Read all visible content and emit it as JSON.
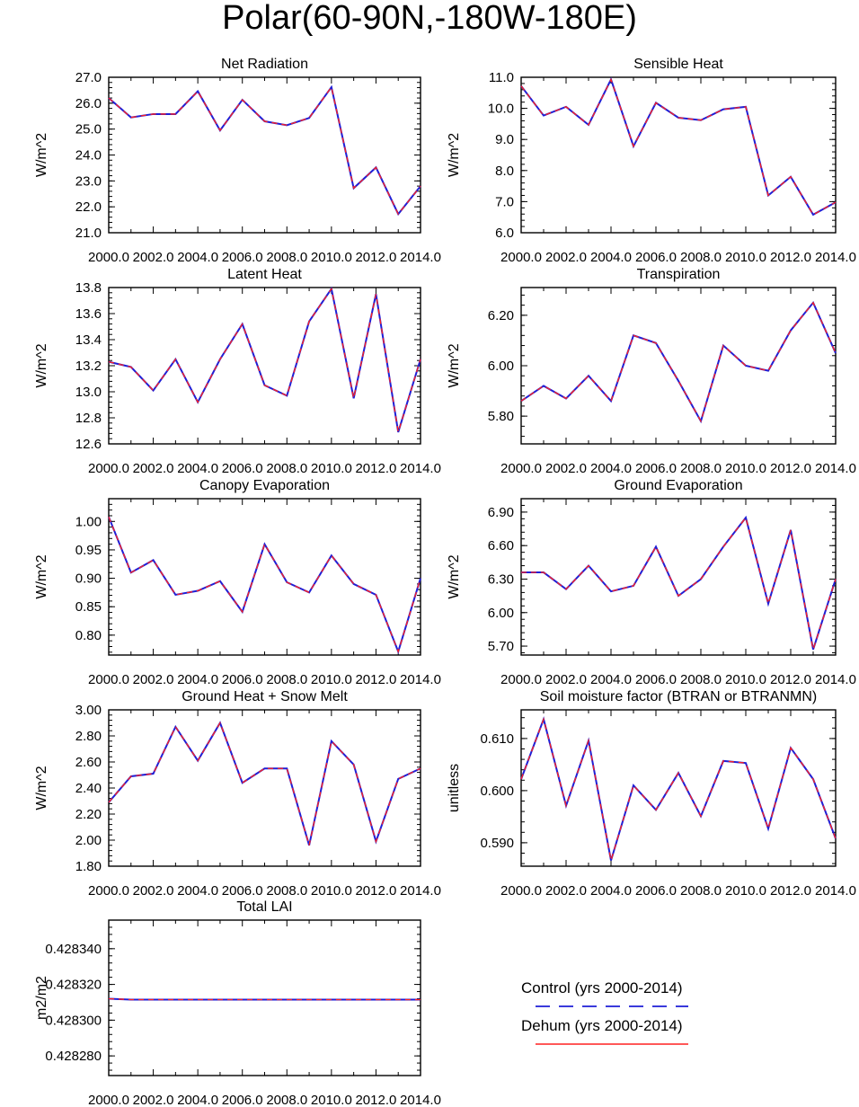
{
  "title": "Polar(60-90N,-180W-180E)",
  "colors": {
    "control": "#1f1fd6",
    "dehum": "#ff2020",
    "axis": "#000000"
  },
  "x_tick_labels": [
    "2000.0",
    "2002.0",
    "2004.0",
    "2006.0",
    "2008.0",
    "2010.0",
    "2012.0",
    "2014.0"
  ],
  "legend": {
    "control_label": "Control (yrs 2000-2014)",
    "dehum_label": "Dehum (yrs 2000-2014)"
  },
  "chart_data": [
    {
      "type": "line",
      "title": "Net Radiation",
      "xlabel": "",
      "ylabel": "W/m^2",
      "x": [
        2000,
        2001,
        2002,
        2003,
        2004,
        2005,
        2006,
        2007,
        2008,
        2009,
        2010,
        2011,
        2012,
        2013,
        2014
      ],
      "xlim": [
        2000,
        2014
      ],
      "ylim": [
        21.0,
        27.0
      ],
      "yticks": [
        21.0,
        22.0,
        23.0,
        24.0,
        25.0,
        26.0,
        27.0
      ],
      "ytick_labels": [
        "21.0",
        "22.0",
        "23.0",
        "24.0",
        "25.0",
        "26.0",
        "27.0"
      ],
      "series": [
        {
          "name": "Control (yrs 2000-2014)",
          "values": [
            26.2,
            25.45,
            25.58,
            25.58,
            26.46,
            24.95,
            26.13,
            25.3,
            25.15,
            25.43,
            26.62,
            22.72,
            23.52,
            21.72,
            22.8
          ]
        },
        {
          "name": "Dehum (yrs 2000-2014)",
          "values": [
            26.2,
            25.45,
            25.58,
            25.58,
            26.46,
            24.95,
            26.13,
            25.3,
            25.15,
            25.43,
            26.62,
            22.72,
            23.52,
            21.72,
            22.8
          ]
        }
      ]
    },
    {
      "type": "line",
      "title": "Sensible Heat",
      "xlabel": "",
      "ylabel": "W/m^2",
      "x": [
        2000,
        2001,
        2002,
        2003,
        2004,
        2005,
        2006,
        2007,
        2008,
        2009,
        2010,
        2011,
        2012,
        2013,
        2014
      ],
      "xlim": [
        2000,
        2014
      ],
      "ylim": [
        6.0,
        11.0
      ],
      "yticks": [
        6.0,
        7.0,
        8.0,
        9.0,
        10.0,
        11.0
      ],
      "ytick_labels": [
        "6.0",
        "7.0",
        "8.0",
        "9.0",
        "10.0",
        "11.0"
      ],
      "series": [
        {
          "name": "Control (yrs 2000-2014)",
          "values": [
            10.72,
            9.77,
            10.05,
            9.47,
            10.93,
            8.78,
            10.18,
            9.7,
            9.62,
            9.97,
            10.05,
            7.2,
            7.8,
            6.58,
            6.98
          ]
        },
        {
          "name": "Dehum (yrs 2000-2014)",
          "values": [
            10.72,
            9.77,
            10.05,
            9.47,
            10.93,
            8.78,
            10.18,
            9.7,
            9.62,
            9.97,
            10.05,
            7.2,
            7.8,
            6.58,
            6.98
          ]
        }
      ]
    },
    {
      "type": "line",
      "title": "Latent Heat",
      "xlabel": "",
      "ylabel": "W/m^2",
      "x": [
        2000,
        2001,
        2002,
        2003,
        2004,
        2005,
        2006,
        2007,
        2008,
        2009,
        2010,
        2011,
        2012,
        2013,
        2014
      ],
      "xlim": [
        2000,
        2014
      ],
      "ylim": [
        12.6,
        13.8
      ],
      "yticks": [
        12.6,
        12.8,
        13.0,
        13.2,
        13.4,
        13.6,
        13.8
      ],
      "ytick_labels": [
        "12.6",
        "12.8",
        "13.0",
        "13.2",
        "13.4",
        "13.6",
        "13.8"
      ],
      "series": [
        {
          "name": "Control (yrs 2000-2014)",
          "values": [
            13.23,
            13.19,
            13.01,
            13.25,
            12.92,
            13.25,
            13.52,
            13.05,
            12.97,
            13.54,
            13.79,
            12.95,
            13.75,
            12.69,
            13.25
          ]
        },
        {
          "name": "Dehum (yrs 2000-2014)",
          "values": [
            13.23,
            13.19,
            13.01,
            13.25,
            12.92,
            13.25,
            13.52,
            13.05,
            12.97,
            13.54,
            13.79,
            12.95,
            13.75,
            12.69,
            13.25
          ]
        }
      ]
    },
    {
      "type": "line",
      "title": "Transpiration",
      "xlabel": "",
      "ylabel": "W/m^2",
      "x": [
        2000,
        2001,
        2002,
        2003,
        2004,
        2005,
        2006,
        2007,
        2008,
        2009,
        2010,
        2011,
        2012,
        2013,
        2014
      ],
      "xlim": [
        2000,
        2014
      ],
      "ylim": [
        5.69,
        6.31
      ],
      "yticks": [
        5.8,
        6.0,
        6.2
      ],
      "ytick_labels": [
        "5.80",
        "6.00",
        "6.20"
      ],
      "series": [
        {
          "name": "Control (yrs 2000-2014)",
          "values": [
            5.86,
            5.92,
            5.87,
            5.96,
            5.86,
            6.12,
            6.09,
            5.94,
            5.78,
            6.08,
            6.0,
            5.98,
            6.14,
            6.25,
            6.05
          ]
        },
        {
          "name": "Dehum (yrs 2000-2014)",
          "values": [
            5.86,
            5.92,
            5.87,
            5.96,
            5.86,
            6.12,
            6.09,
            5.94,
            5.78,
            6.08,
            6.0,
            5.98,
            6.14,
            6.25,
            6.05
          ]
        }
      ]
    },
    {
      "type": "line",
      "title": "Canopy Evaporation",
      "xlabel": "",
      "ylabel": "W/m^2",
      "x": [
        2000,
        2001,
        2002,
        2003,
        2004,
        2005,
        2006,
        2007,
        2008,
        2009,
        2010,
        2011,
        2012,
        2013,
        2014
      ],
      "xlim": [
        2000,
        2014
      ],
      "ylim": [
        0.765,
        1.04
      ],
      "yticks": [
        0.8,
        0.85,
        0.9,
        0.95,
        1.0
      ],
      "ytick_labels": [
        "0.80",
        "0.85",
        "0.90",
        "0.95",
        "1.00"
      ],
      "series": [
        {
          "name": "Control (yrs 2000-2014)",
          "values": [
            1.008,
            0.91,
            0.932,
            0.871,
            0.878,
            0.895,
            0.841,
            0.96,
            0.893,
            0.875,
            0.94,
            0.89,
            0.871,
            0.771,
            0.9
          ]
        },
        {
          "name": "Dehum (yrs 2000-2014)",
          "values": [
            1.008,
            0.91,
            0.932,
            0.871,
            0.878,
            0.895,
            0.841,
            0.96,
            0.893,
            0.875,
            0.94,
            0.89,
            0.871,
            0.771,
            0.9
          ]
        }
      ]
    },
    {
      "type": "line",
      "title": "Ground Evaporation",
      "xlabel": "",
      "ylabel": "W/m^2",
      "x": [
        2000,
        2001,
        2002,
        2003,
        2004,
        2005,
        2006,
        2007,
        2008,
        2009,
        2010,
        2011,
        2012,
        2013,
        2014
      ],
      "xlim": [
        2000,
        2014
      ],
      "ylim": [
        5.62,
        7.02
      ],
      "yticks": [
        5.7,
        6.0,
        6.3,
        6.6,
        6.9
      ],
      "ytick_labels": [
        "5.70",
        "6.00",
        "6.30",
        "6.60",
        "6.90"
      ],
      "series": [
        {
          "name": "Control (yrs 2000-2014)",
          "values": [
            6.36,
            6.36,
            6.21,
            6.42,
            6.19,
            6.24,
            6.59,
            6.15,
            6.3,
            6.59,
            6.85,
            6.08,
            6.74,
            5.67,
            6.3
          ]
        },
        {
          "name": "Dehum (yrs 2000-2014)",
          "values": [
            6.36,
            6.36,
            6.21,
            6.42,
            6.19,
            6.24,
            6.59,
            6.15,
            6.3,
            6.59,
            6.85,
            6.08,
            6.74,
            5.67,
            6.3
          ]
        }
      ]
    },
    {
      "type": "line",
      "title": "Ground Heat + Snow Melt",
      "xlabel": "",
      "ylabel": "W/m^2",
      "x": [
        2000,
        2001,
        2002,
        2003,
        2004,
        2005,
        2006,
        2007,
        2008,
        2009,
        2010,
        2011,
        2012,
        2013,
        2014
      ],
      "xlim": [
        2000,
        2014
      ],
      "ylim": [
        1.8,
        3.0
      ],
      "yticks": [
        1.8,
        2.0,
        2.2,
        2.4,
        2.6,
        2.8,
        3.0
      ],
      "ytick_labels": [
        "1.80",
        "2.00",
        "2.20",
        "2.40",
        "2.60",
        "2.80",
        "3.00"
      ],
      "series": [
        {
          "name": "Control (yrs 2000-2014)",
          "values": [
            2.29,
            2.49,
            2.51,
            2.87,
            2.61,
            2.9,
            2.44,
            2.55,
            2.55,
            1.96,
            2.76,
            2.58,
            1.99,
            2.47,
            2.55
          ]
        },
        {
          "name": "Dehum (yrs 2000-2014)",
          "values": [
            2.29,
            2.49,
            2.51,
            2.87,
            2.61,
            2.9,
            2.44,
            2.55,
            2.55,
            1.96,
            2.76,
            2.58,
            1.99,
            2.47,
            2.55
          ]
        }
      ]
    },
    {
      "type": "line",
      "title": "Soil moisture factor (BTRAN or BTRANMN)",
      "xlabel": "",
      "ylabel": "unitless",
      "x": [
        2000,
        2001,
        2002,
        2003,
        2004,
        2005,
        2006,
        2007,
        2008,
        2009,
        2010,
        2011,
        2012,
        2013,
        2014
      ],
      "xlim": [
        2000,
        2014
      ],
      "ylim": [
        0.5855,
        0.6155
      ],
      "yticks": [
        0.59,
        0.6,
        0.61
      ],
      "ytick_labels": [
        "0.590",
        "0.600",
        "0.610"
      ],
      "series": [
        {
          "name": "Control (yrs 2000-2014)",
          "values": [
            0.6022,
            0.6137,
            0.5971,
            0.6096,
            0.5866,
            0.601,
            0.5963,
            0.6034,
            0.5951,
            0.6057,
            0.6053,
            0.5927,
            0.6082,
            0.6022,
            0.5908
          ]
        },
        {
          "name": "Dehum (yrs 2000-2014)",
          "values": [
            0.6022,
            0.6137,
            0.5971,
            0.6096,
            0.5866,
            0.601,
            0.5963,
            0.6034,
            0.5951,
            0.6057,
            0.6053,
            0.5927,
            0.6082,
            0.6022,
            0.5908
          ]
        }
      ]
    },
    {
      "type": "line",
      "title": "Total LAI",
      "xlabel": "",
      "ylabel": "m2/m2",
      "x": [
        2000,
        2001,
        2002,
        2003,
        2004,
        2005,
        2006,
        2007,
        2008,
        2009,
        2010,
        2011,
        2012,
        2013,
        2014
      ],
      "xlim": [
        2000,
        2014
      ],
      "ylim": [
        0.428269,
        0.428356
      ],
      "yticks": [
        0.42828,
        0.4283,
        0.42832,
        0.42834
      ],
      "ytick_labels": [
        "0.428280",
        "0.428300",
        "0.428320",
        "0.428340"
      ],
      "series": [
        {
          "name": "Control (yrs 2000-2014)",
          "values": [
            0.428312,
            0.4283115,
            0.4283115,
            0.4283115,
            0.4283115,
            0.4283115,
            0.4283115,
            0.4283115,
            0.4283115,
            0.4283115,
            0.4283115,
            0.4283115,
            0.4283115,
            0.4283115,
            0.4283115
          ]
        },
        {
          "name": "Dehum (yrs 2000-2014)",
          "values": [
            0.428312,
            0.4283115,
            0.4283115,
            0.4283115,
            0.4283115,
            0.4283115,
            0.4283115,
            0.4283115,
            0.4283115,
            0.4283115,
            0.4283115,
            0.4283115,
            0.4283115,
            0.4283115,
            0.4283115
          ]
        }
      ]
    }
  ]
}
